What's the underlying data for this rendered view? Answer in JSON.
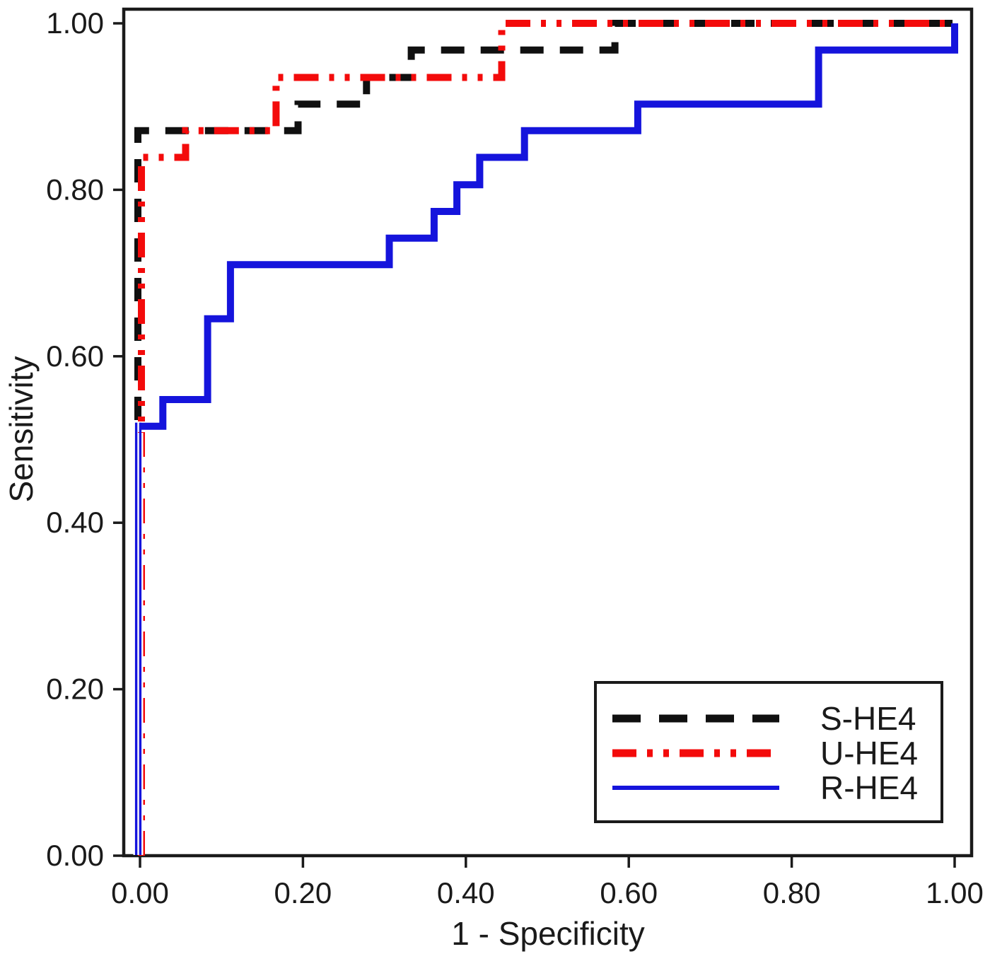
{
  "figure": {
    "kind": "roc-plot",
    "background_color": "#ffffff",
    "frame_color": "#1a1a1a",
    "text_color": "#1a1a1a"
  },
  "axes": {
    "x": {
      "label": "1 - Specificity",
      "tick_labels": [
        "0.00",
        "0.20",
        "0.40",
        "0.60",
        "0.80",
        "1.00"
      ],
      "tick_values": [
        0,
        0.2,
        0.4,
        0.6,
        0.8,
        1.0
      ],
      "range": [
        0,
        1
      ]
    },
    "y": {
      "label": "Sensitivity",
      "tick_labels": [
        "0.00",
        "0.20",
        "0.40",
        "0.60",
        "0.80",
        "1.00"
      ],
      "tick_values": [
        0,
        0.2,
        0.4,
        0.6,
        0.8,
        1.0
      ],
      "range": [
        0,
        1
      ]
    }
  },
  "legend": {
    "position": "bottom-right",
    "entries": [
      "S-HE4",
      "U-HE4",
      "R-HE4"
    ]
  },
  "chart_data": {
    "type": "line",
    "subtype": "roc-step-curves",
    "title": "",
    "xlabel": "1 - Specificity",
    "ylabel": "Sensitivity",
    "xlim": [
      0,
      1
    ],
    "ylim": [
      0,
      1
    ],
    "grid": false,
    "legend_position": "bottom-right",
    "series": [
      {
        "name": "S-HE4",
        "color": "#101010",
        "linestyle": "dashed",
        "points": [
          [
            0,
            0
          ],
          [
            0,
            0.871
          ],
          [
            0.194,
            0.871
          ],
          [
            0.194,
            0.903
          ],
          [
            0.278,
            0.903
          ],
          [
            0.278,
            0.935
          ],
          [
            0.333,
            0.935
          ],
          [
            0.333,
            0.968
          ],
          [
            0.583,
            0.968
          ],
          [
            0.583,
            1.0
          ],
          [
            1.0,
            1.0
          ]
        ]
      },
      {
        "name": "U-HE4",
        "color": "#f30b0b",
        "linestyle": "dash-dot-dot",
        "points": [
          [
            0,
            0
          ],
          [
            0,
            0.839
          ],
          [
            0.056,
            0.839
          ],
          [
            0.056,
            0.871
          ],
          [
            0.167,
            0.871
          ],
          [
            0.167,
            0.935
          ],
          [
            0.444,
            0.935
          ],
          [
            0.444,
            1.0
          ],
          [
            1.0,
            1.0
          ]
        ]
      },
      {
        "name": "R-HE4",
        "color": "#1514dc",
        "linestyle": "solid",
        "points": [
          [
            0,
            0
          ],
          [
            0,
            0.516
          ],
          [
            0.028,
            0.516
          ],
          [
            0.028,
            0.548
          ],
          [
            0.083,
            0.548
          ],
          [
            0.083,
            0.645
          ],
          [
            0.111,
            0.645
          ],
          [
            0.111,
            0.71
          ],
          [
            0.306,
            0.71
          ],
          [
            0.306,
            0.742
          ],
          [
            0.361,
            0.742
          ],
          [
            0.361,
            0.774
          ],
          [
            0.389,
            0.774
          ],
          [
            0.389,
            0.806
          ],
          [
            0.417,
            0.806
          ],
          [
            0.417,
            0.839
          ],
          [
            0.472,
            0.839
          ],
          [
            0.472,
            0.871
          ],
          [
            0.611,
            0.871
          ],
          [
            0.611,
            0.903
          ],
          [
            0.833,
            0.903
          ],
          [
            0.833,
            0.968
          ],
          [
            1.0,
            0.968
          ],
          [
            1.0,
            1.0
          ]
        ]
      }
    ]
  }
}
